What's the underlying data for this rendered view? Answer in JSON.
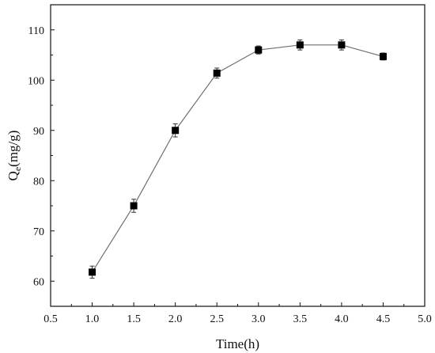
{
  "chart_data": {
    "type": "scatter",
    "title": "",
    "xlabel": "Time(h)",
    "ylabel_main": "Q",
    "ylabel_sub": "e",
    "ylabel_units": "(mg/g)",
    "xlim": [
      0.5,
      5.0
    ],
    "ylim": [
      55,
      115
    ],
    "x_ticks": [
      0.5,
      1.0,
      1.5,
      2.0,
      2.5,
      3.0,
      3.5,
      4.0,
      4.5,
      5.0
    ],
    "x_tick_labels": [
      "0.5",
      "1.0",
      "1.5",
      "2.0",
      "2.5",
      "3.0",
      "3.5",
      "4.0",
      "4.5",
      "5.0"
    ],
    "y_ticks": [
      60,
      70,
      80,
      90,
      100,
      110
    ],
    "y_tick_labels": [
      "60",
      "70",
      "80",
      "90",
      "100",
      "110"
    ],
    "grid": false,
    "series": [
      {
        "x": [
          1.0,
          1.5,
          2.0,
          2.5,
          3.0,
          3.5,
          4.0,
          4.5
        ],
        "y": [
          61.8,
          75.0,
          90.0,
          101.4,
          106.0,
          107.0,
          107.0,
          104.7
        ],
        "error": [
          1.2,
          1.3,
          1.3,
          1.0,
          0.8,
          1.0,
          1.0,
          0.7
        ],
        "color": "#000000",
        "line_color": "#6f6f6f"
      }
    ]
  }
}
